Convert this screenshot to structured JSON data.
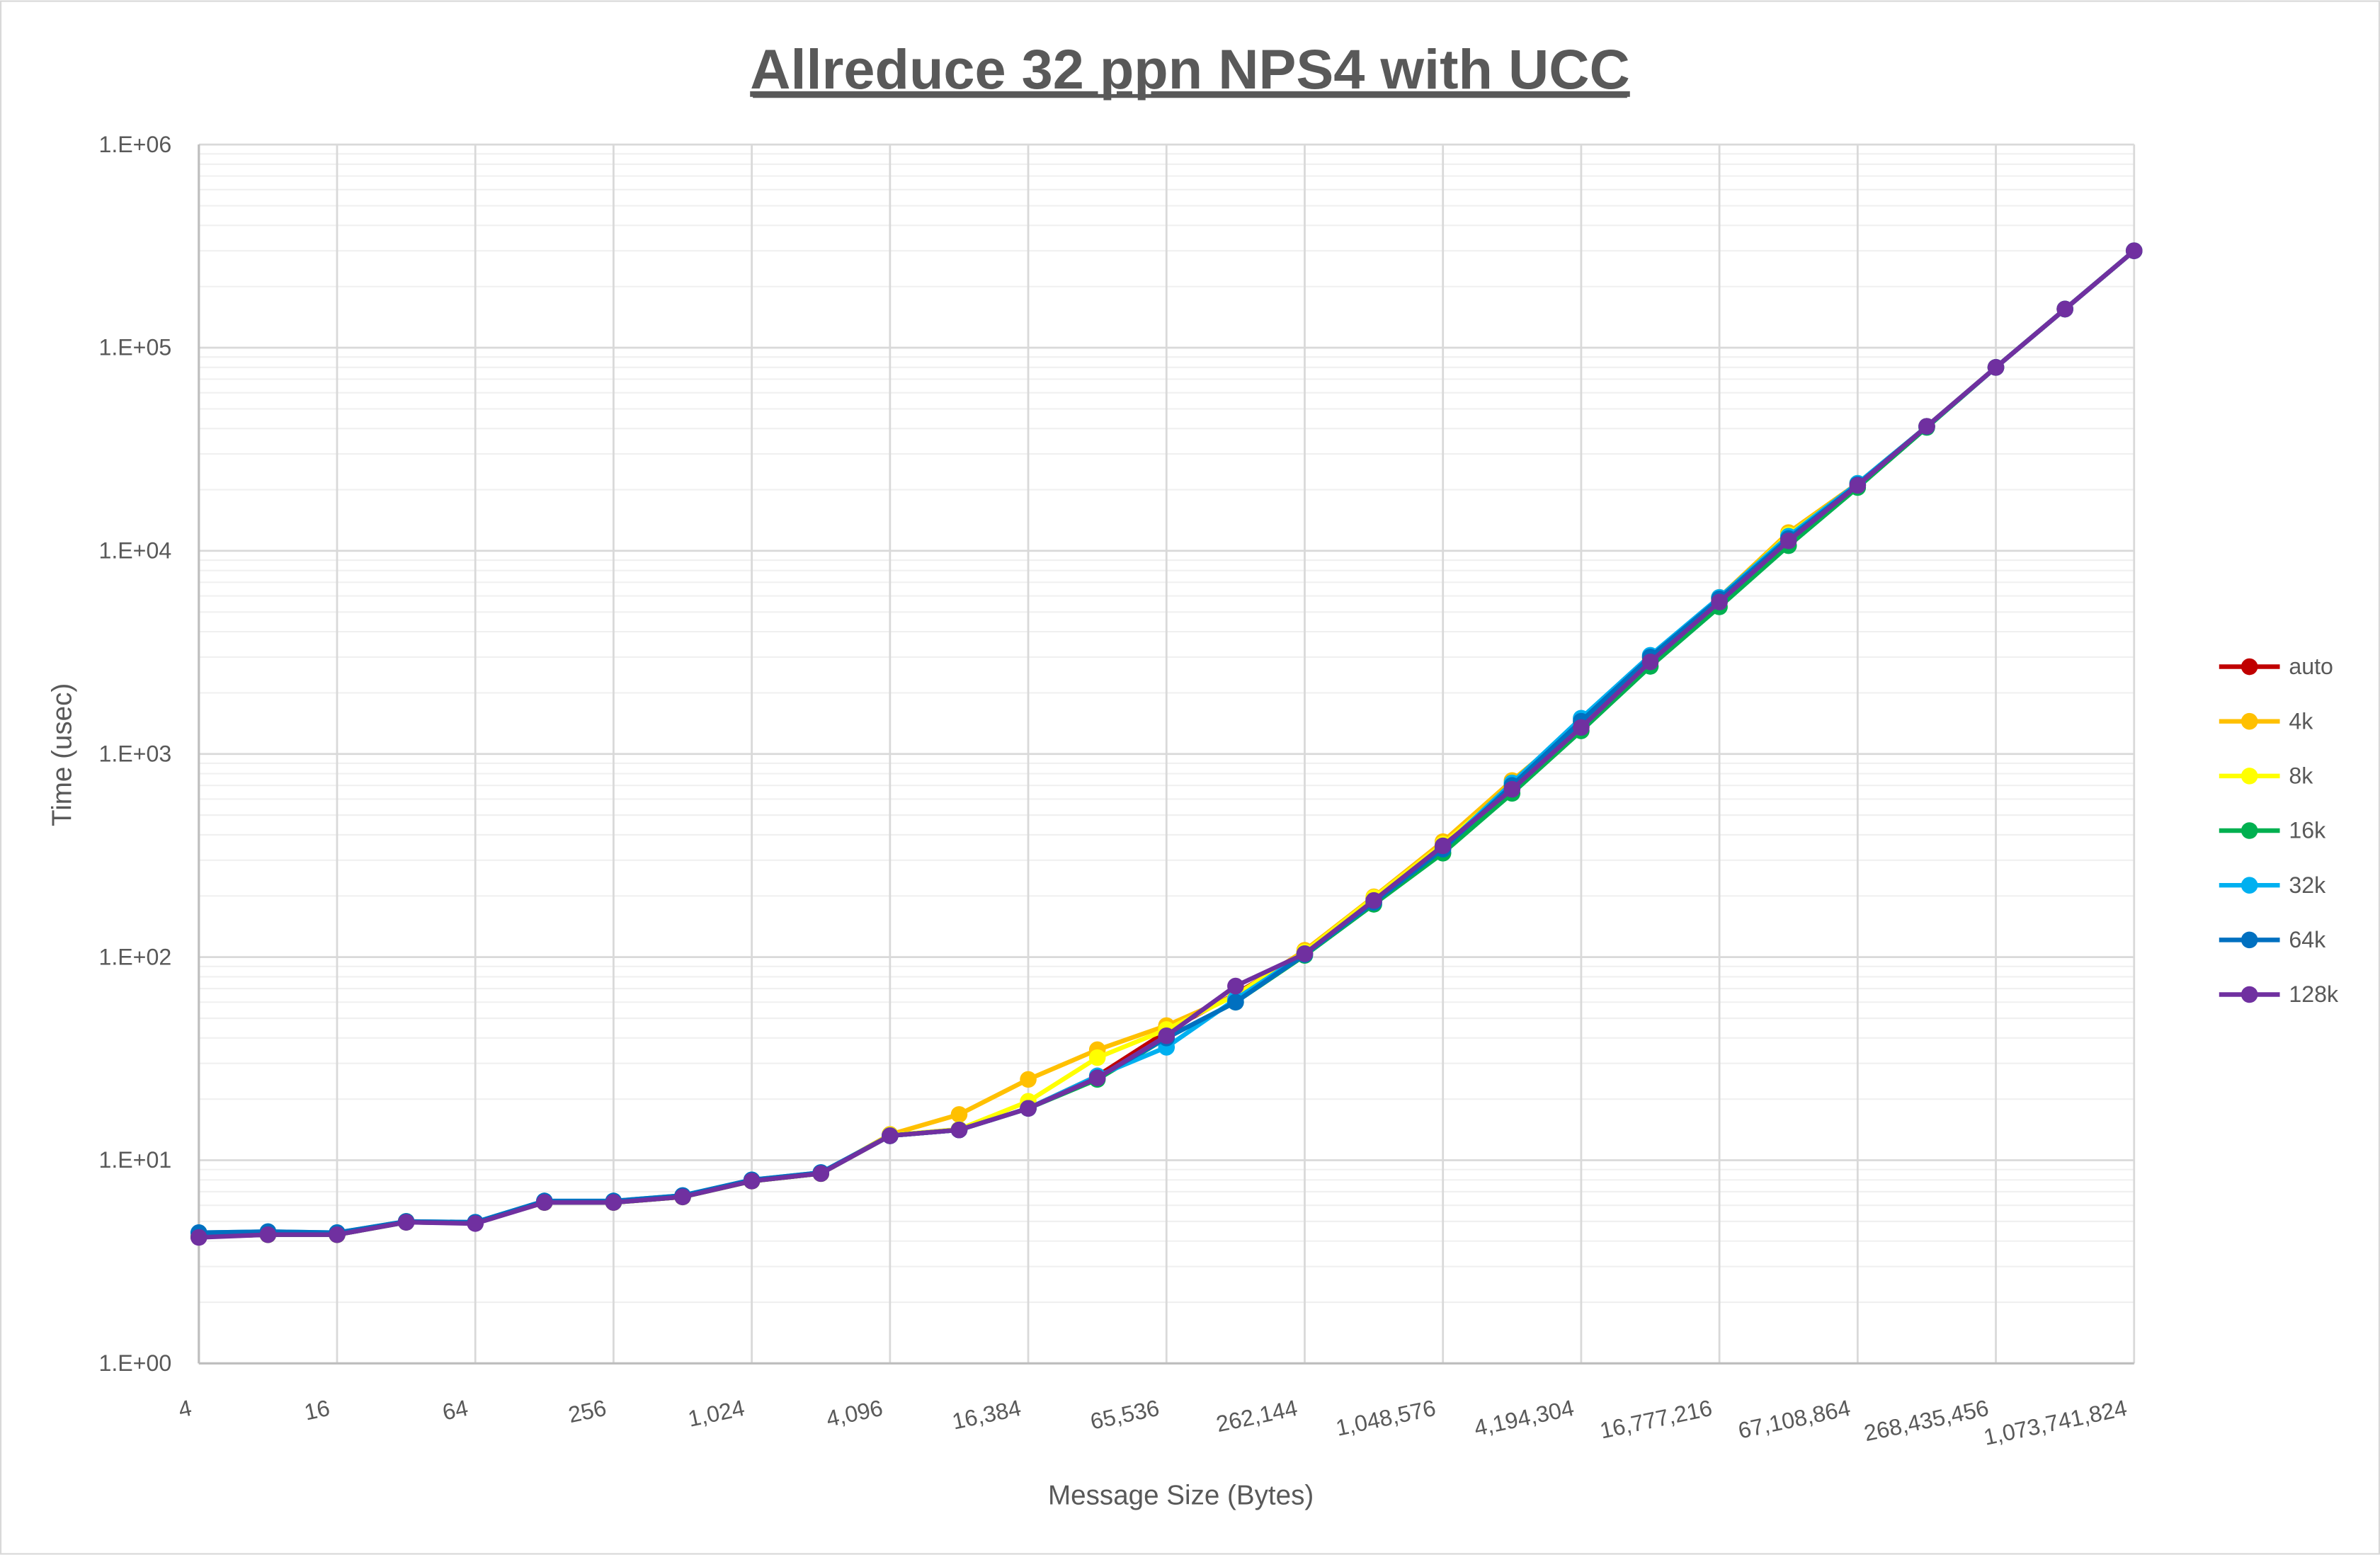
{
  "chart_data": {
    "type": "line",
    "title": "Allreduce 32 ppn NPS4 with UCC",
    "xlabel": "Message Size (Bytes)",
    "ylabel": "Time (usec)",
    "x_scale": "log2",
    "y_scale": "log10",
    "ylim": [
      1,
      1000000
    ],
    "grid": true,
    "legend_position": "right",
    "x": [
      4,
      8,
      16,
      32,
      64,
      128,
      256,
      512,
      1024,
      2048,
      4096,
      8192,
      16384,
      32768,
      65536,
      131072,
      262144,
      524288,
      1048576,
      2097152,
      4194304,
      8388608,
      16777216,
      33554432,
      67108864,
      134217728,
      268435456,
      536870912,
      1073741824
    ],
    "x_tick_labels": [
      "4",
      "16",
      "64",
      "256",
      "1,024",
      "4,096",
      "16,384",
      "65,536",
      "262,144",
      "1,048,576",
      "4,194,304",
      "16,777,216",
      "67,108,864",
      "268,435,456",
      "1,073,741,824"
    ],
    "x_tick_values": [
      4,
      16,
      64,
      256,
      1024,
      4096,
      16384,
      65536,
      262144,
      1048576,
      4194304,
      16777216,
      67108864,
      268435456,
      1073741824
    ],
    "y_tick_labels": [
      "1.E+00",
      "1.E+01",
      "1.E+02",
      "1.E+03",
      "1.E+04",
      "1.E+05",
      "1.E+06"
    ],
    "y_tick_values": [
      1,
      10,
      100,
      1000,
      10000,
      100000,
      1000000
    ],
    "series": [
      {
        "name": "auto",
        "color": "#C00000",
        "values": [
          4.2,
          4.3,
          4.3,
          4.95,
          4.9,
          6.2,
          6.2,
          6.6,
          7.9,
          8.6,
          13.2,
          14.1,
          18,
          26,
          43,
          66,
          105,
          195,
          355,
          680,
          1370,
          2850,
          5650,
          11300,
          21000,
          41000,
          80000,
          155000,
          300000
        ]
      },
      {
        "name": "4k",
        "color": "#FFC000",
        "values": [
          4.2,
          4.3,
          4.3,
          5.0,
          4.9,
          6.2,
          6.2,
          6.6,
          7.9,
          8.6,
          13.4,
          16.8,
          25,
          35,
          46,
          65,
          108,
          198,
          370,
          740,
          1420,
          2950,
          5900,
          12300,
          21500,
          41000,
          80000,
          155000,
          300000
        ]
      },
      {
        "name": "8k",
        "color": "#FFFF00",
        "values": [
          4.2,
          4.3,
          4.3,
          5.0,
          4.9,
          6.2,
          6.2,
          6.6,
          7.9,
          8.6,
          13.3,
          14.2,
          19.5,
          32,
          44,
          65,
          106,
          196,
          360,
          700,
          1400,
          2900,
          5800,
          12000,
          21200,
          41000,
          80000,
          155000,
          300000
        ]
      },
      {
        "name": "16k",
        "color": "#00B050",
        "values": [
          4.2,
          4.3,
          4.3,
          4.95,
          4.9,
          6.2,
          6.2,
          6.6,
          7.9,
          8.6,
          13.2,
          14.1,
          18,
          25,
          40,
          60,
          102,
          182,
          325,
          640,
          1300,
          2700,
          5300,
          10600,
          20500,
          40500,
          80000,
          155000,
          300000
        ]
      },
      {
        "name": "32k",
        "color": "#00B0F0",
        "values": [
          4.4,
          4.45,
          4.4,
          5.0,
          4.95,
          6.3,
          6.3,
          6.7,
          8.0,
          8.7,
          13.2,
          14.1,
          18,
          26,
          36,
          62,
          104,
          188,
          345,
          720,
          1500,
          3060,
          5900,
          11800,
          21500,
          41000,
          80000,
          155000,
          300000
        ]
      },
      {
        "name": "64k",
        "color": "#0070C0",
        "values": [
          4.4,
          4.45,
          4.4,
          5.0,
          4.95,
          6.3,
          6.3,
          6.7,
          8.0,
          8.7,
          13.2,
          14.1,
          18,
          25.5,
          40,
          60,
          103,
          186,
          340,
          700,
          1450,
          3000,
          5800,
          11500,
          21200,
          41000,
          80000,
          155000,
          300000
        ]
      },
      {
        "name": "128k",
        "color": "#7030A0",
        "values": [
          4.17,
          4.3,
          4.3,
          4.95,
          4.88,
          6.2,
          6.2,
          6.6,
          7.9,
          8.6,
          13.2,
          14.1,
          18,
          25.4,
          41,
          72,
          104,
          190,
          353,
          670,
          1350,
          2840,
          5600,
          11200,
          21000,
          41000,
          80000,
          155000,
          300000
        ]
      }
    ]
  }
}
